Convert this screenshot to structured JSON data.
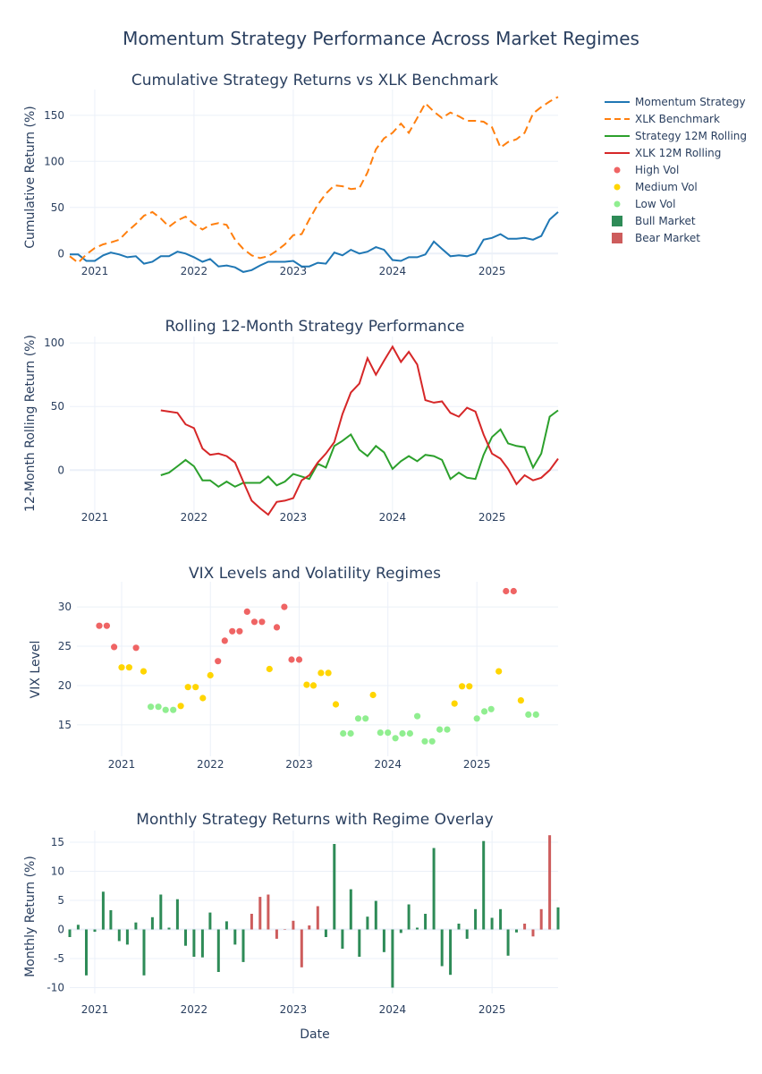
{
  "title": "Momentum Strategy Performance Across Market Regimes",
  "x_dates": [
    "2020-10",
    "2020-11",
    "2020-12",
    "2021-01",
    "2021-02",
    "2021-03",
    "2021-04",
    "2021-05",
    "2021-06",
    "2021-07",
    "2021-08",
    "2021-09",
    "2021-10",
    "2021-11",
    "2021-12",
    "2022-01",
    "2022-02",
    "2022-03",
    "2022-04",
    "2022-05",
    "2022-06",
    "2022-07",
    "2022-08",
    "2022-09",
    "2022-10",
    "2022-11",
    "2022-12",
    "2023-01",
    "2023-02",
    "2023-03",
    "2023-04",
    "2023-05",
    "2023-06",
    "2023-07",
    "2023-08",
    "2023-09",
    "2023-10",
    "2023-11",
    "2023-12",
    "2024-01",
    "2024-02",
    "2024-03",
    "2024-04",
    "2024-05",
    "2024-06",
    "2024-07",
    "2024-08",
    "2024-09",
    "2024-10",
    "2024-11",
    "2024-12",
    "2025-01",
    "2025-02",
    "2025-03",
    "2025-04",
    "2025-05",
    "2025-06",
    "2025-07",
    "2025-08",
    "2025-09"
  ],
  "x_ticks": [
    "2021",
    "2022",
    "2023",
    "2024",
    "2025"
  ],
  "xlabel": "Date",
  "legend": [
    {
      "name": "Momentum Strategy",
      "kind": "line",
      "color": "#1f77b4",
      "dash": false
    },
    {
      "name": "XLK Benchmark",
      "kind": "line",
      "color": "#ff7f0e",
      "dash": true
    },
    {
      "name": "Strategy 12M Rolling",
      "kind": "line",
      "color": "#2ca02c",
      "dash": false
    },
    {
      "name": "XLK 12M Rolling",
      "kind": "line",
      "color": "#d62728",
      "dash": false
    },
    {
      "name": "High Vol",
      "kind": "dot",
      "color": "#ef6464"
    },
    {
      "name": "Medium Vol",
      "kind": "dot",
      "color": "#ffd500"
    },
    {
      "name": "Low Vol",
      "kind": "dot",
      "color": "#90ee90"
    },
    {
      "name": "Bull Market",
      "kind": "square",
      "color": "#2e8b57"
    },
    {
      "name": "Bear Market",
      "kind": "square",
      "color": "#cd5c5c"
    }
  ],
  "chart_data": [
    {
      "type": "line",
      "title": "Cumulative Strategy Returns vs XLK Benchmark",
      "ylabel": "Cumulative Return (%)",
      "ylim": [
        -25,
        178
      ],
      "yticks": [
        0,
        50,
        100,
        150
      ],
      "series": [
        {
          "name": "Momentum Strategy",
          "values": [
            -1,
            -1,
            -8,
            -8,
            -2,
            1,
            -1,
            -4,
            -3,
            -11,
            -9,
            -3,
            -3,
            2,
            0,
            -4,
            -9,
            -6,
            -14,
            -13,
            -15,
            -20,
            -18,
            -13,
            -9,
            -9,
            -9,
            -8,
            -14,
            -14,
            -10,
            -11,
            1,
            -2,
            4,
            0,
            2,
            7,
            4,
            -7,
            -8,
            -4,
            -4,
            -1,
            13,
            5,
            -3,
            -2,
            -3,
            0,
            15,
            17,
            21,
            16,
            16,
            17,
            15,
            19,
            37,
            45
          ]
        },
        {
          "name": "XLK Benchmark",
          "values": [
            -3,
            -10,
            -1,
            6,
            10,
            12,
            15,
            24,
            32,
            41,
            45,
            38,
            29,
            36,
            40,
            32,
            26,
            31,
            33,
            31,
            15,
            5,
            -2,
            -5,
            -3,
            3,
            10,
            20,
            21,
            37,
            53,
            65,
            74,
            73,
            70,
            71,
            88,
            113,
            125,
            131,
            141,
            131,
            147,
            163,
            154,
            147,
            153,
            149,
            144,
            144,
            143,
            137,
            115,
            121,
            124,
            131,
            152,
            159,
            165,
            170
          ]
        },
        {
          "name": "Strategy 12M Rolling",
          "values": [
            null,
            null,
            null,
            null,
            null,
            null,
            null,
            null,
            null,
            null,
            null,
            -4,
            -2,
            3,
            8,
            3,
            -8,
            -8,
            -13,
            -9,
            -13,
            -10,
            -10,
            -10,
            -5,
            -12,
            -9,
            -3,
            -5,
            -7,
            5,
            2,
            19,
            23,
            28,
            16,
            11,
            19,
            14,
            1,
            7,
            11,
            7,
            12,
            11,
            8,
            -7,
            -2,
            -6,
            -7,
            12,
            26,
            32,
            21,
            19,
            18,
            2,
            13,
            42,
            47
          ]
        },
        {
          "name": "XLK 12M Rolling",
          "values": [
            null,
            null,
            null,
            null,
            null,
            null,
            null,
            null,
            null,
            null,
            null,
            47,
            46,
            45,
            36,
            33,
            17,
            12,
            13,
            11,
            6,
            -9,
            -24,
            -30,
            -35,
            -25,
            -24,
            -22,
            -8,
            -4,
            6,
            13,
            22,
            44,
            61,
            68,
            88,
            75,
            86,
            97,
            85,
            93,
            83,
            55,
            53,
            54,
            45,
            42,
            49,
            46,
            28,
            13,
            9,
            1,
            -11,
            -4,
            -8,
            -6,
            0,
            9
          ]
        }
      ]
    },
    {
      "type": "scatter",
      "title": "VIX Levels and Volatility Regimes",
      "ylabel": "VIX Level",
      "ylim": [
        11,
        33.2
      ],
      "yticks": [
        15,
        20,
        25,
        30
      ],
      "values": [
        27.6,
        27.6,
        24.9,
        22.3,
        22.3,
        24.8,
        21.8,
        17.3,
        17.3,
        16.9,
        16.9,
        17.4,
        19.8,
        19.8,
        18.4,
        21.3,
        23.1,
        25.7,
        26.9,
        26.9,
        29.4,
        28.1,
        28.1,
        22.1,
        27.4,
        30.0,
        23.3,
        23.3,
        20.1,
        20.0,
        21.6,
        21.6,
        17.6,
        13.9,
        13.9,
        15.8,
        15.8,
        18.8,
        14.0,
        14.0,
        13.3,
        13.9,
        13.9,
        16.1,
        12.9,
        12.9,
        14.4,
        14.4,
        17.7,
        19.9,
        19.9,
        15.8,
        16.7,
        17.0,
        21.8,
        32.0,
        32.0,
        18.1,
        16.3,
        16.3
      ],
      "regimes": [
        "High Vol",
        "High Vol",
        "High Vol",
        "Medium Vol",
        "Medium Vol",
        "High Vol",
        "Medium Vol",
        "Low Vol",
        "Low Vol",
        "Low Vol",
        "Low Vol",
        "Medium Vol",
        "Medium Vol",
        "Medium Vol",
        "Medium Vol",
        "Medium Vol",
        "High Vol",
        "High Vol",
        "High Vol",
        "High Vol",
        "High Vol",
        "High Vol",
        "High Vol",
        "Medium Vol",
        "High Vol",
        "High Vol",
        "High Vol",
        "High Vol",
        "Medium Vol",
        "Medium Vol",
        "Medium Vol",
        "Medium Vol",
        "Medium Vol",
        "Low Vol",
        "Low Vol",
        "Low Vol",
        "Low Vol",
        "Medium Vol",
        "Low Vol",
        "Low Vol",
        "Low Vol",
        "Low Vol",
        "Low Vol",
        "Low Vol",
        "Low Vol",
        "Low Vol",
        "Low Vol",
        "Low Vol",
        "Medium Vol",
        "Medium Vol",
        "Medium Vol",
        "Low Vol",
        "Low Vol",
        "Low Vol",
        "Medium Vol",
        "High Vol",
        "High Vol",
        "Medium Vol",
        "Low Vol",
        "Low Vol"
      ]
    },
    {
      "type": "bar",
      "title": "Monthly Strategy Returns with Regime Overlay",
      "ylabel": "Monthly Return (%)",
      "ylim": [
        -11,
        17
      ],
      "yticks": [
        -10,
        -5,
        0,
        5,
        10,
        15
      ],
      "values": [
        -1.3,
        0.8,
        -7.9,
        -0.4,
        6.5,
        3.3,
        -2.0,
        -2.6,
        1.2,
        -7.9,
        2.1,
        6.0,
        0.3,
        5.2,
        -2.8,
        -4.7,
        -4.8,
        2.9,
        -7.3,
        1.4,
        -2.6,
        -5.6,
        2.7,
        5.6,
        6.0,
        -1.6,
        0.0,
        1.5,
        -6.5,
        0.7,
        4.0,
        -1.3,
        14.7,
        -3.3,
        6.9,
        -4.7,
        2.2,
        4.9,
        -3.9,
        -10.0,
        -0.6,
        4.3,
        0.3,
        2.7,
        14.0,
        -6.3,
        -7.8,
        1.0,
        -1.6,
        3.5,
        15.2,
        2.0,
        3.5,
        -4.5,
        -0.5,
        1.0,
        -1.2,
        3.5,
        16.2,
        3.8
      ],
      "regimes": [
        "Bull",
        "Bull",
        "Bull",
        "Bull",
        "Bull",
        "Bull",
        "Bull",
        "Bull",
        "Bull",
        "Bull",
        "Bull",
        "Bull",
        "Bull",
        "Bull",
        "Bull",
        "Bull",
        "Bull",
        "Bull",
        "Bull",
        "Bull",
        "Bull",
        "Bull",
        "Bear",
        "Bear",
        "Bear",
        "Bear",
        "Bear",
        "Bear",
        "Bear",
        "Bear",
        "Bear",
        "Bull",
        "Bull",
        "Bull",
        "Bull",
        "Bull",
        "Bull",
        "Bull",
        "Bull",
        "Bull",
        "Bull",
        "Bull",
        "Bull",
        "Bull",
        "Bull",
        "Bull",
        "Bull",
        "Bull",
        "Bull",
        "Bull",
        "Bull",
        "Bull",
        "Bull",
        "Bull",
        "Bull",
        "Bear",
        "Bear",
        "Bear",
        "Bear",
        "Bull"
      ]
    }
  ],
  "rolling_panel": {
    "title": "Rolling 12-Month Strategy Performance",
    "ylabel": "12-Month Rolling Return (%)",
    "ylim": [
      -42,
      105
    ],
    "yticks": [
      0,
      50,
      100
    ]
  },
  "colors": {
    "bull": "#2e8b57",
    "bear": "#cd5c5c",
    "high": "#ef6464",
    "medium": "#ffd500",
    "low": "#90ee90"
  }
}
